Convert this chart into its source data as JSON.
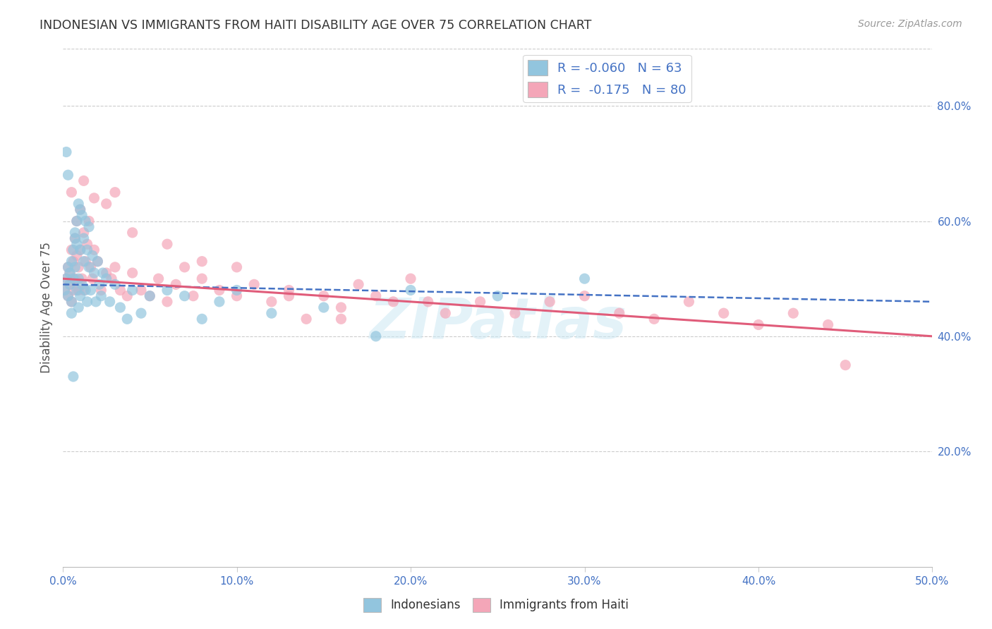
{
  "title": "INDONESIAN VS IMMIGRANTS FROM HAITI DISABILITY AGE OVER 75 CORRELATION CHART",
  "source": "Source: ZipAtlas.com",
  "ylabel": "Disability Age Over 75",
  "xlim": [
    0.0,
    0.5
  ],
  "ylim": [
    0.0,
    0.9
  ],
  "xtick_vals": [
    0.0,
    0.1,
    0.2,
    0.3,
    0.4,
    0.5
  ],
  "xtick_labels": [
    "0.0%",
    "10.0%",
    "20.0%",
    "30.0%",
    "40.0%",
    "50.0%"
  ],
  "ytick_vals": [
    0.2,
    0.4,
    0.6,
    0.8
  ],
  "ytick_labels": [
    "20.0%",
    "40.0%",
    "60.0%",
    "80.0%"
  ],
  "legend1_label": "R = -0.060   N = 63",
  "legend2_label": "R =  -0.175   N = 80",
  "blue_color": "#92c5de",
  "pink_color": "#f4a6b8",
  "blue_line_color": "#4472C4",
  "pink_line_color": "#e05c7a",
  "axis_color": "#4472C4",
  "watermark": "ZIPatlas",
  "indonesians_label": "Indonesians",
  "haiti_label": "Immigrants from Haiti",
  "blue_line_y_start": 0.49,
  "blue_line_y_end": 0.46,
  "pink_line_y_start": 0.5,
  "pink_line_y_end": 0.4,
  "blue_scatter_x": [
    0.001,
    0.002,
    0.003,
    0.003,
    0.004,
    0.004,
    0.005,
    0.005,
    0.005,
    0.006,
    0.006,
    0.007,
    0.007,
    0.007,
    0.008,
    0.008,
    0.008,
    0.009,
    0.009,
    0.009,
    0.01,
    0.01,
    0.01,
    0.011,
    0.011,
    0.012,
    0.012,
    0.013,
    0.013,
    0.014,
    0.014,
    0.015,
    0.015,
    0.016,
    0.017,
    0.018,
    0.019,
    0.02,
    0.021,
    0.022,
    0.023,
    0.025,
    0.027,
    0.03,
    0.033,
    0.037,
    0.04,
    0.045,
    0.05,
    0.06,
    0.07,
    0.08,
    0.09,
    0.1,
    0.12,
    0.15,
    0.18,
    0.2,
    0.25,
    0.3,
    0.002,
    0.003,
    0.006
  ],
  "blue_scatter_y": [
    0.48,
    0.5,
    0.52,
    0.47,
    0.49,
    0.51,
    0.53,
    0.46,
    0.44,
    0.55,
    0.5,
    0.58,
    0.57,
    0.52,
    0.6,
    0.56,
    0.48,
    0.63,
    0.45,
    0.5,
    0.62,
    0.55,
    0.47,
    0.61,
    0.49,
    0.57,
    0.53,
    0.6,
    0.48,
    0.55,
    0.46,
    0.59,
    0.52,
    0.48,
    0.54,
    0.51,
    0.46,
    0.53,
    0.49,
    0.47,
    0.51,
    0.5,
    0.46,
    0.49,
    0.45,
    0.43,
    0.48,
    0.44,
    0.47,
    0.48,
    0.47,
    0.43,
    0.46,
    0.48,
    0.44,
    0.45,
    0.4,
    0.48,
    0.47,
    0.5,
    0.72,
    0.68,
    0.33
  ],
  "pink_scatter_x": [
    0.001,
    0.002,
    0.003,
    0.003,
    0.004,
    0.004,
    0.005,
    0.005,
    0.006,
    0.006,
    0.007,
    0.007,
    0.008,
    0.008,
    0.009,
    0.009,
    0.01,
    0.01,
    0.011,
    0.012,
    0.012,
    0.013,
    0.014,
    0.015,
    0.016,
    0.017,
    0.018,
    0.02,
    0.022,
    0.025,
    0.028,
    0.03,
    0.033,
    0.037,
    0.04,
    0.045,
    0.05,
    0.055,
    0.06,
    0.065,
    0.07,
    0.075,
    0.08,
    0.09,
    0.1,
    0.11,
    0.12,
    0.13,
    0.14,
    0.15,
    0.16,
    0.17,
    0.18,
    0.19,
    0.2,
    0.21,
    0.22,
    0.24,
    0.26,
    0.28,
    0.3,
    0.32,
    0.34,
    0.36,
    0.38,
    0.4,
    0.42,
    0.44,
    0.005,
    0.012,
    0.018,
    0.025,
    0.03,
    0.04,
    0.06,
    0.08,
    0.1,
    0.13,
    0.16,
    0.45
  ],
  "pink_scatter_y": [
    0.48,
    0.5,
    0.52,
    0.47,
    0.49,
    0.51,
    0.55,
    0.46,
    0.53,
    0.48,
    0.57,
    0.5,
    0.6,
    0.54,
    0.52,
    0.48,
    0.62,
    0.55,
    0.5,
    0.58,
    0.48,
    0.53,
    0.56,
    0.6,
    0.52,
    0.5,
    0.55,
    0.53,
    0.48,
    0.51,
    0.5,
    0.52,
    0.48,
    0.47,
    0.51,
    0.48,
    0.47,
    0.5,
    0.46,
    0.49,
    0.52,
    0.47,
    0.5,
    0.48,
    0.47,
    0.49,
    0.46,
    0.48,
    0.43,
    0.47,
    0.45,
    0.49,
    0.47,
    0.46,
    0.5,
    0.46,
    0.44,
    0.46,
    0.44,
    0.46,
    0.47,
    0.44,
    0.43,
    0.46,
    0.44,
    0.42,
    0.44,
    0.42,
    0.65,
    0.67,
    0.64,
    0.63,
    0.65,
    0.58,
    0.56,
    0.53,
    0.52,
    0.47,
    0.43,
    0.35
  ]
}
